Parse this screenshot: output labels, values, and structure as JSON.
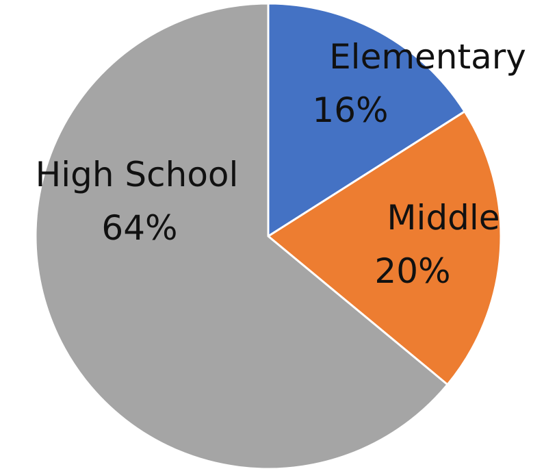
{
  "chart_data": {
    "type": "pie",
    "title": "",
    "series": [
      {
        "slices": [
          {
            "category": "Elementary",
            "value": 16,
            "label": "16%",
            "color": "#4472C4"
          },
          {
            "category": "Middle",
            "value": 20,
            "label": "20%",
            "color": "#ED7D31"
          },
          {
            "category": "High School",
            "value": 64,
            "label": "64%",
            "color": "#A5A5A5"
          }
        ]
      }
    ],
    "start_angle_deg": 0,
    "direction": "clockwise",
    "legend": "none",
    "data_labels": "category and percentage"
  }
}
